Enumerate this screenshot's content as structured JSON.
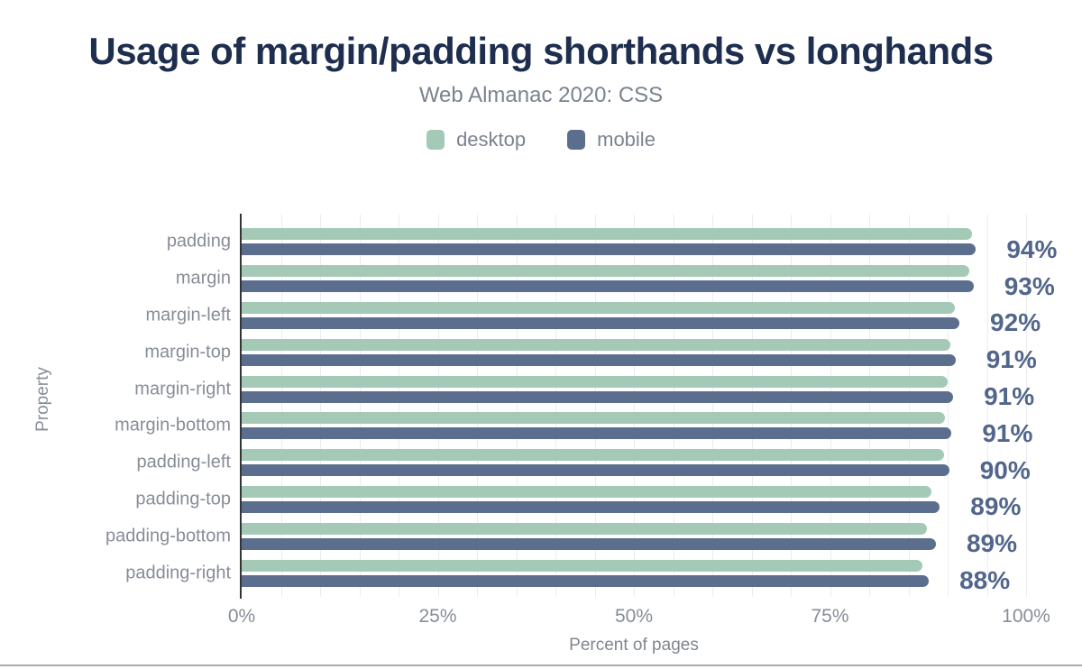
{
  "header": {
    "title": "Usage of margin/padding shorthands vs longhands",
    "subtitle": "Web Almanac 2020: CSS"
  },
  "legend": {
    "items": [
      {
        "label": "desktop",
        "color": "#a4c9b6"
      },
      {
        "label": "mobile",
        "color": "#5b6e8e"
      }
    ]
  },
  "chart_data": {
    "type": "bar",
    "orientation": "horizontal",
    "title": "Usage of margin/padding shorthands vs longhands",
    "subtitle": "Web Almanac 2020: CSS",
    "xlabel": "Percent of pages",
    "ylabel": "Property",
    "xlim": [
      0,
      100
    ],
    "x_tick_labels": [
      "0%",
      "25%",
      "50%",
      "75%",
      "100%"
    ],
    "x_tick_values": [
      0,
      25,
      50,
      75,
      100
    ],
    "grid": "vertical gridlines every 5%, light gray",
    "legend_position": "top-center",
    "categories": [
      "padding",
      "margin",
      "margin-left",
      "margin-top",
      "margin-right",
      "margin-bottom",
      "padding-left",
      "padding-top",
      "padding-bottom",
      "padding-right"
    ],
    "series": [
      {
        "name": "desktop",
        "color": "#a4c9b6",
        "values": [
          93.1,
          92.8,
          90.9,
          90.3,
          90.0,
          89.7,
          89.5,
          87.9,
          87.4,
          86.8
        ]
      },
      {
        "name": "mobile",
        "color": "#5b6e8e",
        "values": [
          93.6,
          93.3,
          91.5,
          91.0,
          90.7,
          90.5,
          90.2,
          89.0,
          88.5,
          87.6
        ]
      }
    ],
    "value_labels": [
      "94%",
      "93%",
      "92%",
      "91%",
      "91%",
      "91%",
      "90%",
      "89%",
      "89%",
      "88%"
    ]
  },
  "colors": {
    "title": "#1d2e4e",
    "subtitle_text": "#7b838f",
    "axis_line": "#333639",
    "tick_text": "#878d97",
    "value_label_text": "#52668c",
    "gridline": "#ececef",
    "desktop_bar": "#a4c9b6",
    "mobile_bar": "#5b6e8e"
  }
}
